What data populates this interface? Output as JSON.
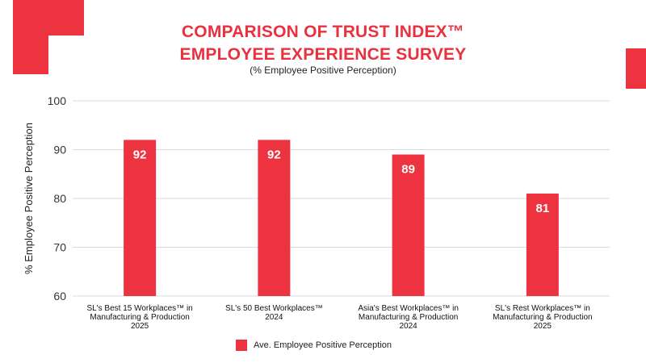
{
  "colors": {
    "accent": "#ee3340",
    "title": "#e8323f",
    "grid": "#d4dde2"
  },
  "header": {
    "title_line1": "COMPARISON OF TRUST INDEX™",
    "title_line2": "EMPLOYEE EXPERIENCE SURVEY",
    "subtitle": "(% Employee Positive Perception)"
  },
  "chart_data": {
    "type": "bar",
    "title": "COMPARISON OF TRUST INDEX™ EMPLOYEE EXPERIENCE SURVEY",
    "subtitle": "(% Employee Positive Perception)",
    "ylabel": "% Employee Positive Perception",
    "xlabel": "",
    "ylim": [
      60,
      100
    ],
    "yticks": [
      60,
      70,
      80,
      90,
      100
    ],
    "grid": true,
    "legend_position": "bottom",
    "categories": [
      [
        "SL's Best 15 Workplaces™ in",
        "Manufacturing & Production",
        "2025"
      ],
      [
        "SL's 50 Best Workplaces™",
        "2024"
      ],
      [
        "Asia's Best Workplaces™ in",
        "Manufacturing & Production",
        "2024"
      ],
      [
        "SL's Rest Workplaces™ in",
        "Manufacturing & Production",
        "2025"
      ]
    ],
    "series": [
      {
        "name": "Ave. Employee Positive Perception",
        "values": [
          92,
          92,
          89,
          81
        ]
      }
    ]
  }
}
